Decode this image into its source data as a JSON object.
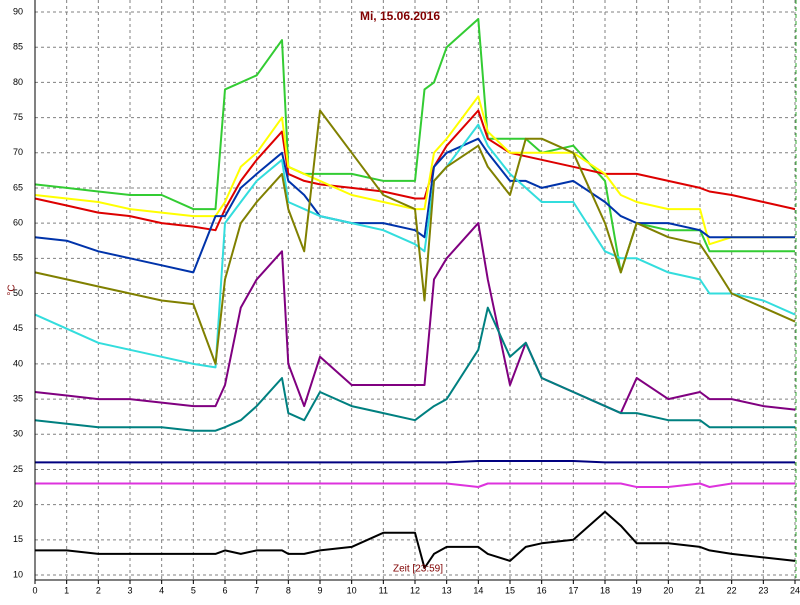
{
  "chart_data": {
    "type": "line",
    "title": "Mi, 15.06.2016",
    "y_label": "°C",
    "x_label": "Zeit [23:59]",
    "x": [
      0,
      1,
      2,
      3,
      4,
      5,
      5.7,
      6,
      6.5,
      7,
      7.8,
      8,
      8.5,
      9,
      10,
      11,
      12,
      12.3,
      12.6,
      13,
      14,
      14.3,
      15,
      15.5,
      16,
      17,
      18,
      18.5,
      19,
      20,
      21,
      21.3,
      22,
      23,
      24
    ],
    "xlim": [
      0,
      24
    ],
    "xticks": [
      0,
      1,
      2,
      3,
      4,
      5,
      6,
      7,
      8,
      9,
      10,
      11,
      12,
      13,
      14,
      15,
      16,
      17,
      18,
      19,
      20,
      21,
      22,
      23,
      24
    ],
    "ylim": [
      10,
      90
    ],
    "yticks": [
      10,
      15,
      20,
      25,
      30,
      35,
      40,
      45,
      50,
      55,
      60,
      65,
      70,
      75,
      80,
      85,
      90
    ],
    "grid": true,
    "series": [
      {
        "color": "#33cc33",
        "values": [
          65.5,
          65,
          64.5,
          64,
          64,
          62,
          62,
          79,
          80,
          81,
          86,
          68,
          67,
          67,
          67,
          66,
          66,
          79,
          80,
          85,
          89,
          72,
          72,
          72,
          70,
          71,
          66,
          53,
          60,
          59,
          59,
          56,
          56,
          56,
          56
        ]
      },
      {
        "color": "#dd0000",
        "values": [
          63.5,
          62.5,
          61.5,
          61,
          60,
          59.5,
          59,
          62,
          66,
          69,
          73,
          67,
          66,
          65.5,
          65,
          64.5,
          63.5,
          63.5,
          68,
          71,
          76,
          72,
          70,
          69.5,
          69,
          68,
          67,
          67,
          67,
          66,
          65,
          64.5,
          64,
          63,
          62
        ]
      },
      {
        "color": "#ffff00",
        "values": [
          64,
          63.5,
          63,
          62,
          61.5,
          61,
          61,
          63,
          68,
          70,
          75,
          68,
          67,
          66,
          64,
          63,
          62,
          62,
          70,
          72,
          78,
          73,
          70,
          70,
          70,
          70,
          67,
          64,
          63,
          62,
          62,
          57,
          58,
          58,
          58
        ]
      },
      {
        "color": "#0033aa",
        "values": [
          58,
          57.5,
          56,
          55,
          54,
          53,
          61,
          61,
          65,
          67,
          70,
          66,
          64,
          61,
          60,
          60,
          59,
          58,
          68,
          70,
          72,
          70,
          66,
          66,
          65,
          66,
          63,
          61,
          60,
          60,
          59,
          58,
          58,
          58,
          58
        ]
      },
      {
        "color": "#33dddd",
        "values": [
          47,
          45,
          43,
          42,
          41,
          40,
          39.5,
          60,
          63,
          66,
          69,
          63,
          62,
          61,
          60,
          59,
          57,
          56,
          66,
          68,
          74,
          71,
          67,
          65,
          63,
          63,
          56,
          55,
          55,
          53,
          52,
          50,
          50,
          49,
          47
        ]
      },
      {
        "color": "#808000",
        "values": [
          53,
          52,
          51,
          50,
          49,
          48.5,
          40,
          52,
          60,
          63,
          67,
          62,
          56,
          76,
          70,
          64,
          62,
          49,
          66,
          68,
          71,
          68,
          64,
          72,
          72,
          70,
          60,
          53,
          60,
          58,
          57,
          55,
          50,
          48,
          46
        ]
      },
      {
        "color": "#800080",
        "values": [
          36,
          35.5,
          35,
          35,
          34.5,
          34,
          34,
          37,
          48,
          52,
          56,
          40,
          34,
          41,
          37,
          37,
          37,
          37,
          52,
          55,
          60,
          52,
          37,
          43,
          38,
          36,
          34,
          33,
          38,
          35,
          36,
          35,
          35,
          34,
          33.5
        ]
      },
      {
        "color": "#008080",
        "values": [
          32,
          31.5,
          31,
          31,
          31,
          30.5,
          30.5,
          31,
          32,
          34,
          38,
          33,
          32,
          36,
          34,
          33,
          32,
          33,
          34,
          35,
          42,
          48,
          41,
          43,
          38,
          36,
          34,
          33,
          33,
          32,
          32,
          31,
          31,
          31,
          31
        ]
      },
      {
        "color": "#000080",
        "values": [
          26,
          26,
          26,
          26,
          26,
          26,
          26,
          26,
          26,
          26,
          26,
          26,
          26,
          26,
          26,
          26,
          26,
          26,
          26,
          26,
          26.2,
          26.2,
          26.2,
          26.2,
          26.2,
          26.2,
          26,
          26,
          26,
          26,
          26,
          26,
          26,
          26,
          26
        ]
      },
      {
        "color": "#dd33dd",
        "values": [
          23,
          23,
          23,
          23,
          23,
          23,
          23,
          23,
          23,
          23,
          23,
          23,
          23,
          23,
          23,
          23,
          23,
          23,
          23,
          23,
          22.5,
          23,
          23,
          23,
          23,
          23,
          23,
          23,
          22.5,
          22.5,
          23,
          22.5,
          23,
          23,
          23
        ]
      },
      {
        "color": "#000000",
        "values": [
          13.5,
          13.5,
          13,
          13,
          13,
          13,
          13,
          13.5,
          13,
          13.5,
          13.5,
          13,
          13,
          13.5,
          14,
          16,
          16,
          11,
          13,
          14,
          14,
          13,
          12,
          14,
          14.5,
          15,
          19,
          17,
          14.5,
          14.5,
          14,
          13.5,
          13,
          12.5,
          12
        ]
      }
    ]
  }
}
